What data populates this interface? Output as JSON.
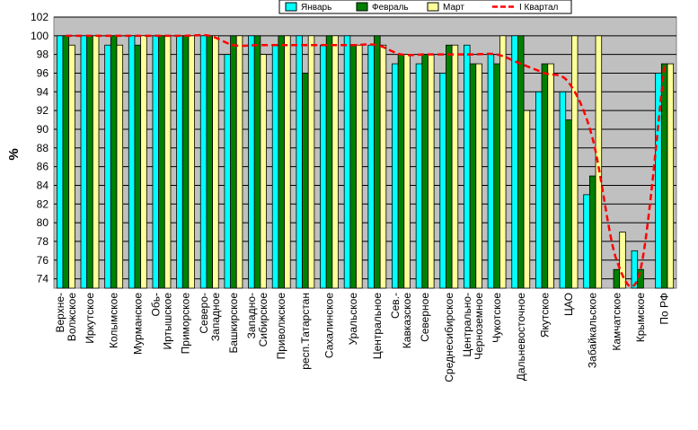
{
  "chart_data": {
    "type": "bar",
    "ylabel": "%",
    "ylim": [
      73,
      102
    ],
    "yticks": [
      74,
      76,
      78,
      80,
      82,
      84,
      86,
      88,
      90,
      92,
      94,
      96,
      98,
      100,
      102
    ],
    "grid": true,
    "legend_position": "top-right",
    "categories": [
      "Верхне-Волжское",
      "Иркутское",
      "Колымское",
      "Мурманское",
      "Обь-Иртышское",
      "Приморское",
      "Северо-Западное",
      "Башкирское",
      "Западно-Сибирское",
      "Приволжское",
      "респ.Татарстан",
      "Сахалинское",
      "Уральское",
      "Центральное",
      "Сев.-Кавказское",
      "Северное",
      "Среднесибирское",
      "Центрально-Черноземное",
      "Чукотское",
      "Дальневосточное",
      "Якутское",
      "ЦАО",
      "Забайкальское",
      "Камчатское",
      "Крымское",
      "По РФ"
    ],
    "series": [
      {
        "name": "Январь",
        "kind": "bar",
        "color": "#00ffff",
        "values": [
          100,
          100,
          99,
          100,
          100,
          100,
          100,
          98,
          100,
          99,
          100,
          99,
          100,
          99,
          97,
          97,
          96,
          99,
          98,
          100,
          94,
          94,
          83,
          73,
          77,
          96
        ]
      },
      {
        "name": "Февраль",
        "kind": "bar",
        "color": "#008000",
        "values": [
          100,
          100,
          100,
          99,
          100,
          100,
          100,
          100,
          100,
          100,
          96,
          100,
          99,
          100,
          98,
          98,
          99,
          97,
          97,
          100,
          97,
          91,
          85,
          75,
          75,
          97
        ]
      },
      {
        "name": "Март",
        "kind": "bar",
        "color": "#ffff99",
        "values": [
          99,
          100,
          99,
          100,
          100,
          100,
          100,
          100,
          98,
          100,
          100,
          100,
          99,
          99,
          98,
          98,
          99,
          97,
          100,
          92,
          97,
          100,
          100,
          79,
          73,
          97
        ]
      },
      {
        "name": "I Квартал",
        "kind": "line",
        "color": "#ff0000",
        "values": [
          100,
          100,
          100,
          100,
          100,
          100,
          100,
          99,
          99,
          99,
          99,
          99,
          99,
          99,
          98,
          98,
          98,
          98,
          98,
          97,
          96,
          95,
          89,
          76,
          75,
          97
        ]
      }
    ]
  }
}
